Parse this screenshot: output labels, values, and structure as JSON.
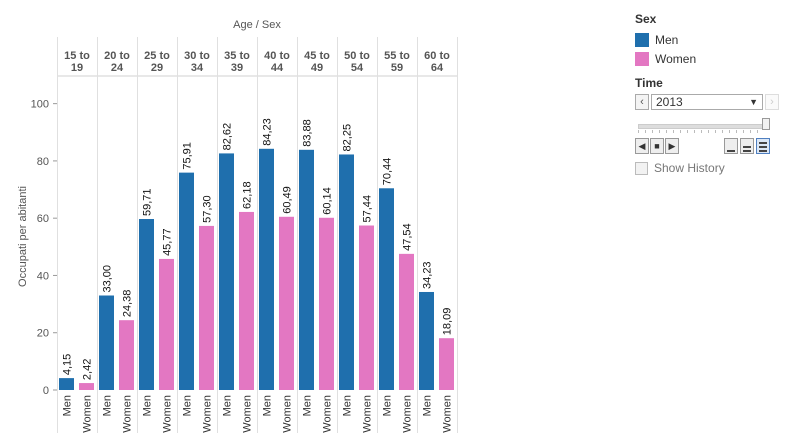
{
  "colors": {
    "men": "#1f6fad",
    "women": "#e377c2"
  },
  "legend": {
    "title": "Sex",
    "items": [
      {
        "label": "Men",
        "color": "#1f6fad"
      },
      {
        "label": "Women",
        "color": "#e377c2"
      }
    ]
  },
  "time_filter": {
    "title": "Time",
    "selected": "2013",
    "show_history_label": "Show History"
  },
  "chart_data": {
    "type": "bar",
    "header": "Age  /  Sex",
    "ylabel": "Occupati per abitanti",
    "ylim": [
      0,
      110
    ],
    "yticks": [
      0,
      20,
      40,
      60,
      80,
      100
    ],
    "groups": [
      {
        "label": [
          "15 to",
          "19"
        ],
        "values": [
          4.15,
          2.42
        ],
        "labels": [
          "4,15",
          "2,42"
        ]
      },
      {
        "label": [
          "20 to",
          "24"
        ],
        "values": [
          33.0,
          24.38
        ],
        "labels": [
          "33,00",
          "24,38"
        ]
      },
      {
        "label": [
          "25 to",
          "29"
        ],
        "values": [
          59.71,
          45.77
        ],
        "labels": [
          "59,71",
          "45,77"
        ]
      },
      {
        "label": [
          "30 to",
          "34"
        ],
        "values": [
          75.91,
          57.3
        ],
        "labels": [
          "75,91",
          "57,30"
        ]
      },
      {
        "label": [
          "35 to",
          "39"
        ],
        "values": [
          82.62,
          62.18
        ],
        "labels": [
          "82,62",
          "62,18"
        ]
      },
      {
        "label": [
          "40 to",
          "44"
        ],
        "values": [
          84.23,
          60.49
        ],
        "labels": [
          "84,23",
          "60,49"
        ]
      },
      {
        "label": [
          "45 to",
          "49"
        ],
        "values": [
          83.88,
          60.14
        ],
        "labels": [
          "83,88",
          "60,14"
        ]
      },
      {
        "label": [
          "50 to",
          "54"
        ],
        "values": [
          82.25,
          57.44
        ],
        "labels": [
          "82,25",
          "57,44"
        ]
      },
      {
        "label": [
          "55 to",
          "59"
        ],
        "values": [
          70.44,
          47.54
        ],
        "labels": [
          "70,44",
          "47,54"
        ]
      },
      {
        "label": [
          "60 to",
          "64"
        ],
        "values": [
          34.23,
          18.09
        ],
        "labels": [
          "34,23",
          "18,09"
        ]
      }
    ],
    "series": [
      {
        "name": "Men"
      },
      {
        "name": "Women"
      }
    ]
  }
}
